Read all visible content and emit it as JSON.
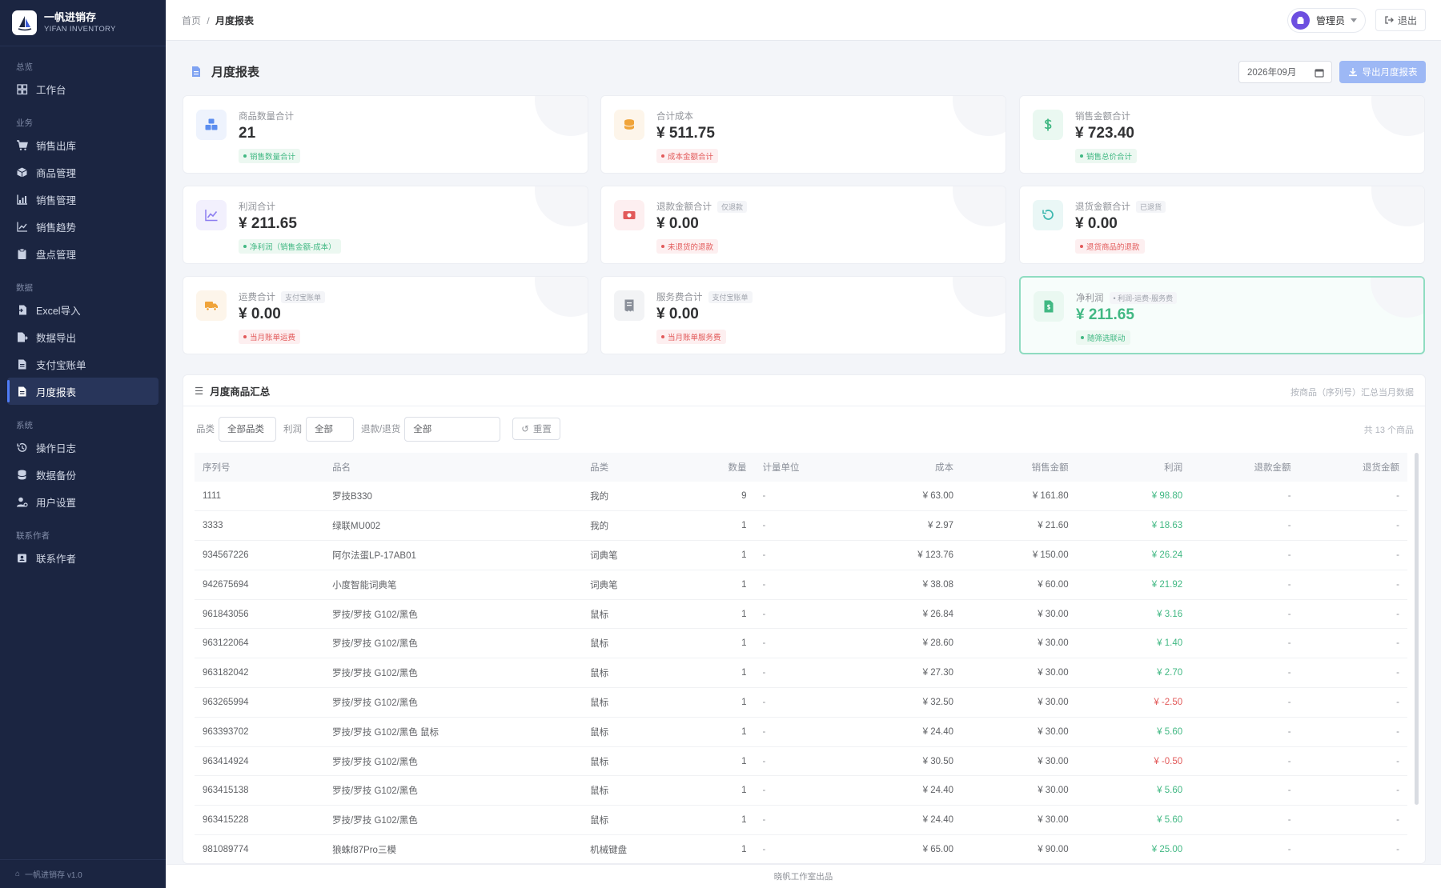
{
  "brand": {
    "title": "一帆进销存",
    "subtitle": "YIFAN INVENTORY",
    "version": "一帆进销存 v1.0"
  },
  "sidebar": {
    "groups": [
      {
        "label": "总览",
        "items": [
          {
            "label": "工作台",
            "icon": "dashboard-icon"
          }
        ]
      },
      {
        "label": "业务",
        "items": [
          {
            "label": "销售出库",
            "icon": "cart-icon"
          },
          {
            "label": "商品管理",
            "icon": "box-icon"
          },
          {
            "label": "销售管理",
            "icon": "chart-bar-icon"
          },
          {
            "label": "销售趋势",
            "icon": "trend-icon"
          },
          {
            "label": "盘点管理",
            "icon": "clipboard-icon"
          }
        ]
      },
      {
        "label": "数据",
        "items": [
          {
            "label": "Excel导入",
            "icon": "import-icon"
          },
          {
            "label": "数据导出",
            "icon": "export-icon"
          },
          {
            "label": "支付宝账单",
            "icon": "bill-icon"
          },
          {
            "label": "月度报表",
            "icon": "report-icon",
            "active": true
          }
        ]
      },
      {
        "label": "系统",
        "items": [
          {
            "label": "操作日志",
            "icon": "history-icon"
          },
          {
            "label": "数据备份",
            "icon": "database-icon"
          },
          {
            "label": "用户设置",
            "icon": "user-settings-icon"
          }
        ]
      },
      {
        "label": "联系作者",
        "items": [
          {
            "label": "联系作者",
            "icon": "contact-icon"
          }
        ]
      }
    ]
  },
  "topbar": {
    "breadcrumb_home": "首页",
    "breadcrumb_sep": "/",
    "breadcrumb_current": "月度报表",
    "user": "管理员",
    "logout": "退出"
  },
  "page": {
    "title": "月度报表",
    "month": "2026年09月",
    "export_label": "导出月度报表"
  },
  "cards": [
    {
      "label": "商品数量合计",
      "note": "",
      "value": "21",
      "tag": "销售数量合计",
      "tone": "green",
      "icon": "cubes-icon",
      "icon_color": "#5b8def",
      "icon_bg": "#eef3fd"
    },
    {
      "label": "合计成本",
      "note": "",
      "value": "¥ 511.75",
      "tag": "成本金额合计",
      "tone": "red",
      "icon": "coins-icon",
      "icon_color": "#f0a43a",
      "icon_bg": "#fdf5ea"
    },
    {
      "label": "销售金额合计",
      "note": "",
      "value": "¥ 723.40",
      "tag": "销售总价合计",
      "tone": "green",
      "icon": "dollar-icon",
      "icon_color": "#41b883",
      "icon_bg": "#eaf8f1"
    },
    {
      "label": "利润合计",
      "note": "",
      "value": "¥ 211.65",
      "tag": "净利润（销售金额-成本）",
      "tone": "green",
      "icon": "line-chart-icon",
      "icon_color": "#8b7cf0",
      "icon_bg": "#f2f0fd"
    },
    {
      "label": "退款金额合计",
      "note": "仅退款",
      "value": "¥ 0.00",
      "tag": "未退货的退款",
      "tone": "red",
      "icon": "money-icon",
      "icon_color": "#e25a5a",
      "icon_bg": "#fdeff0"
    },
    {
      "label": "退货金额合计",
      "note": "已退货",
      "value": "¥ 0.00",
      "tag": "退货商品的退款",
      "tone": "red",
      "icon": "undo-icon",
      "icon_color": "#3fb8b0",
      "icon_bg": "#eaf7f6"
    },
    {
      "label": "运费合计",
      "note": "支付宝账单",
      "value": "¥ 0.00",
      "tag": "当月账单运费",
      "tone": "red",
      "icon": "truck-icon",
      "icon_color": "#f0a43a",
      "icon_bg": "#fdf5ea"
    },
    {
      "label": "服务费合计",
      "note": "支付宝账单",
      "value": "¥ 0.00",
      "tag": "当月账单服务费",
      "tone": "red",
      "icon": "receipt-icon",
      "icon_color": "#8a8f99",
      "icon_bg": "#f2f3f5"
    },
    {
      "label": "净利润",
      "note": "• 利润-运费-服务费",
      "value": "¥ 211.65",
      "tag": "随筛选联动",
      "tone": "green",
      "icon": "file-dollar-icon",
      "icon_color": "#41b883",
      "icon_bg": "#eaf8f1",
      "highlight": true
    }
  ],
  "summary": {
    "title": "月度商品汇总",
    "hint": "按商品（序列号）汇总当月数据",
    "filters": {
      "category_label": "品类",
      "category_value": "全部品类",
      "profit_label": "利润",
      "profit_value": "全部",
      "refund_label": "退款/退货",
      "refund_value": "全部",
      "reset_label": "重置"
    },
    "count": "共 13 个商品",
    "columns": [
      "序列号",
      "品名",
      "品类",
      "数量",
      "计量单位",
      "成本",
      "销售金额",
      "利润",
      "退款金额",
      "退货金额"
    ],
    "rows": [
      [
        "1111",
        "罗技B330",
        "我的",
        "9",
        "-",
        "¥ 63.00",
        "¥ 161.80",
        "¥ 98.80",
        "-",
        "-"
      ],
      [
        "3333",
        "绿联MU002",
        "我的",
        "1",
        "-",
        "¥ 2.97",
        "¥ 21.60",
        "¥ 18.63",
        "-",
        "-"
      ],
      [
        "934567226",
        "阿尔法蛋LP-17AB01",
        "词典笔",
        "1",
        "-",
        "¥ 123.76",
        "¥ 150.00",
        "¥ 26.24",
        "-",
        "-"
      ],
      [
        "942675694",
        "小度智能词典笔",
        "词典笔",
        "1",
        "-",
        "¥ 38.08",
        "¥ 60.00",
        "¥ 21.92",
        "-",
        "-"
      ],
      [
        "961843056",
        "罗技/罗技 G102/黑色",
        "鼠标",
        "1",
        "-",
        "¥ 26.84",
        "¥ 30.00",
        "¥ 3.16",
        "-",
        "-"
      ],
      [
        "963122064",
        "罗技/罗技 G102/黑色",
        "鼠标",
        "1",
        "-",
        "¥ 28.60",
        "¥ 30.00",
        "¥ 1.40",
        "-",
        "-"
      ],
      [
        "963182042",
        "罗技/罗技 G102/黑色",
        "鼠标",
        "1",
        "-",
        "¥ 27.30",
        "¥ 30.00",
        "¥ 2.70",
        "-",
        "-"
      ],
      [
        "963265994",
        "罗技/罗技 G102/黑色",
        "鼠标",
        "1",
        "-",
        "¥ 32.50",
        "¥ 30.00",
        "¥ -2.50",
        "-",
        "-"
      ],
      [
        "963393702",
        "罗技/罗技 G102/黑色 鼠标",
        "鼠标",
        "1",
        "-",
        "¥ 24.40",
        "¥ 30.00",
        "¥ 5.60",
        "-",
        "-"
      ],
      [
        "963414924",
        "罗技/罗技 G102/黑色",
        "鼠标",
        "1",
        "-",
        "¥ 30.50",
        "¥ 30.00",
        "¥ -0.50",
        "-",
        "-"
      ],
      [
        "963415138",
        "罗技/罗技 G102/黑色",
        "鼠标",
        "1",
        "-",
        "¥ 24.40",
        "¥ 30.00",
        "¥ 5.60",
        "-",
        "-"
      ],
      [
        "963415228",
        "罗技/罗技 G102/黑色",
        "鼠标",
        "1",
        "-",
        "¥ 24.40",
        "¥ 30.00",
        "¥ 5.60",
        "-",
        "-"
      ],
      [
        "981089774",
        "狼蛛f87Pro三模",
        "机械键盘",
        "1",
        "-",
        "¥ 65.00",
        "¥ 90.00",
        "¥ 25.00",
        "-",
        "-"
      ]
    ]
  },
  "footer": "晓帆工作室出品"
}
